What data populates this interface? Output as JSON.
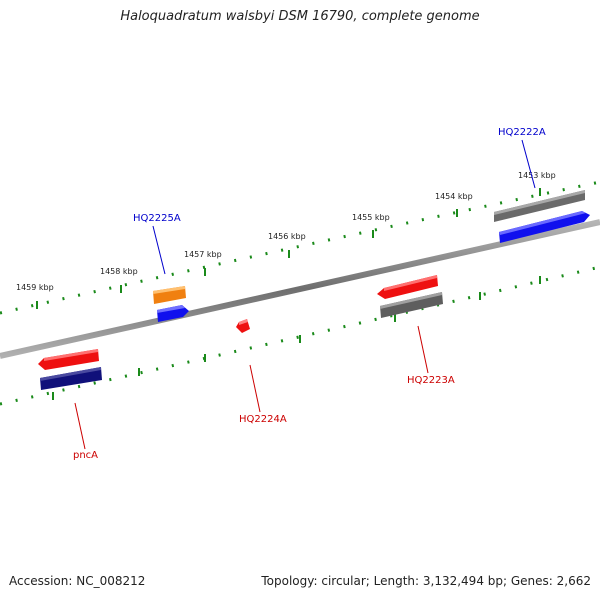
{
  "title": "Haloquadratum walsbyi DSM 16790, complete genome",
  "footer": {
    "accession": "Accession: NC_008212",
    "topology": "Topology: circular; Length: 3,132,494 bp; Genes: 2,662"
  },
  "scale": {
    "kbp_labels": [
      "1453 kbp",
      "1454 kbp",
      "1455 kbp",
      "1456 kbp",
      "1457 kbp",
      "1458 kbp",
      "1459 kbp"
    ]
  },
  "genes": {
    "hq2222a": "HQ2222A",
    "hq2225a": "HQ2225A",
    "hq2223a": "HQ2223A",
    "hq2224a": "HQ2224A",
    "pnca": "pncA"
  },
  "colors": {
    "forward_label": "#0000cc",
    "reverse_label": "#cc0000",
    "backbone": "#808080",
    "tick": "#1a8a1a"
  }
}
